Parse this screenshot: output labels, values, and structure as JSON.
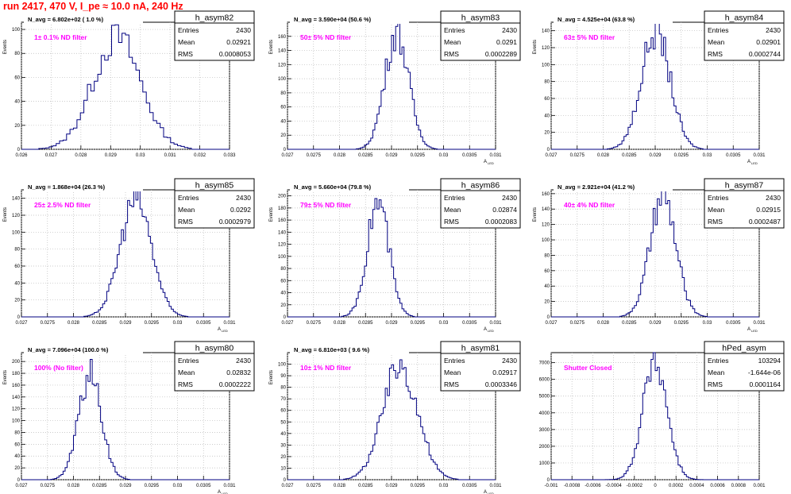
{
  "header": {
    "run_title": "run 2417,   470 V, I_pe ≈ 10.0 nA, 240 Hz"
  },
  "colors": {
    "histogram": "#000080",
    "annotation": "#ff00ff",
    "title": "#ff0000",
    "frame": "#000000",
    "grid": "#bbbbbb"
  },
  "chart_data": [
    {
      "type": "bar",
      "name": "h_asym82",
      "title": "N_avg = 6.802e+02 ( 1.0 %)",
      "annotation": "1± 0.1% ND filter",
      "ylabel": "Events",
      "xlabel": "",
      "stats": {
        "entries": "2430",
        "mean": "0.02921",
        "rms": "0.0008053"
      },
      "xlim": [
        0.026,
        0.033
      ],
      "ylim": [
        0,
        106
      ],
      "xticks": [
        "0.026",
        "0.027",
        "0.028",
        "0.029",
        "0.03",
        "0.031",
        "0.032",
        "0.033"
      ],
      "yticks": [
        0,
        20,
        40,
        60,
        80,
        100
      ],
      "mean": 0.02921,
      "rms": 0.0008053,
      "peak": 93,
      "bins": 60
    },
    {
      "type": "bar",
      "name": "h_asym83",
      "title": "N_avg = 3.590e+04 (50.6 %)",
      "annotation": "50± 5% ND filter",
      "ylabel": "Events",
      "xlabel": "A",
      "stats": {
        "entries": "2430",
        "mean": "0.0291",
        "rms": "0.0002289"
      },
      "xlim": [
        0.027,
        0.031
      ],
      "ylim": [
        0,
        180
      ],
      "xticks": [
        "0.027",
        "0.0275",
        "0.028",
        "0.0285",
        "0.029",
        "0.0295",
        "0.03",
        "0.0305",
        "0.031"
      ],
      "yticks": [
        0,
        20,
        40,
        60,
        80,
        100,
        120,
        140,
        160
      ],
      "mean": 0.0291,
      "rms": 0.0002289,
      "peak": 166,
      "bins": 100
    },
    {
      "type": "bar",
      "name": "h_asym84",
      "title": "N_avg = 4.525e+04 (63.8 %)",
      "annotation": "63± 5% ND filter",
      "ylabel": "Events",
      "xlabel": "A",
      "stats": {
        "entries": "2430",
        "mean": "0.02901",
        "rms": "0.0002744"
      },
      "xlim": [
        0.027,
        0.031
      ],
      "ylim": [
        0,
        150
      ],
      "xticks": [
        "0.027",
        "0.0275",
        "0.028",
        "0.0285",
        "0.029",
        "0.0295",
        "0.03",
        "0.0305",
        "0.031"
      ],
      "yticks": [
        0,
        20,
        40,
        60,
        80,
        100,
        120,
        140
      ],
      "mean": 0.02901,
      "rms": 0.0002744,
      "peak": 140,
      "bins": 100
    },
    {
      "type": "bar",
      "name": "h_asym85",
      "title": "N_avg = 1.868e+04 (26.3 %)",
      "annotation": "25± 2.5% ND filter",
      "ylabel": "Events",
      "xlabel": "A",
      "stats": {
        "entries": "2430",
        "mean": "0.0292",
        "rms": "0.0002979"
      },
      "xlim": [
        0.027,
        0.031
      ],
      "ylim": [
        0,
        150
      ],
      "xticks": [
        "0.027",
        "0.0275",
        "0.028",
        "0.0285",
        "0.029",
        "0.0295",
        "0.03",
        "0.0305",
        "0.031"
      ],
      "yticks": [
        0,
        20,
        40,
        60,
        80,
        100,
        120,
        140
      ],
      "mean": 0.0292,
      "rms": 0.0002979,
      "peak": 139,
      "bins": 100
    },
    {
      "type": "bar",
      "name": "h_asym86",
      "title": "N_avg = 5.660e+04 (79.8 %)",
      "annotation": "79± 5% ND filter",
      "ylabel": "Events",
      "xlabel": "A",
      "stats": {
        "entries": "2430",
        "mean": "0.02874",
        "rms": "0.0002083"
      },
      "xlim": [
        0.027,
        0.031
      ],
      "ylim": [
        0,
        210
      ],
      "xticks": [
        "0.027",
        "0.0275",
        "0.028",
        "0.0285",
        "0.029",
        "0.0295",
        "0.03",
        "0.0305",
        "0.031"
      ],
      "yticks": [
        0,
        20,
        40,
        60,
        80,
        100,
        120,
        140,
        160,
        180,
        200
      ],
      "mean": 0.02874,
      "rms": 0.0002083,
      "peak": 190,
      "bins": 100
    },
    {
      "type": "bar",
      "name": "h_asym87",
      "title": "N_avg = 2.921e+04 (41.2 %)",
      "annotation": "40± 4% ND filter",
      "ylabel": "Events",
      "xlabel": "A",
      "stats": {
        "entries": "2430",
        "mean": "0.02915",
        "rms": "0.0002487"
      },
      "xlim": [
        0.027,
        0.031
      ],
      "ylim": [
        0,
        165
      ],
      "xticks": [
        "0.027",
        "0.0275",
        "0.028",
        "0.0285",
        "0.029",
        "0.0295",
        "0.03",
        "0.0305",
        "0.031"
      ],
      "yticks": [
        0,
        20,
        40,
        60,
        80,
        100,
        120,
        140,
        160
      ],
      "mean": 0.02915,
      "rms": 0.0002487,
      "peak": 155,
      "bins": 100
    },
    {
      "type": "bar",
      "name": "h_asym80",
      "title": "N_avg = 7.096e+04 (100.0 %)",
      "annotation": "100% (No filter)",
      "ylabel": "Events",
      "xlabel": "A",
      "stats": {
        "entries": "2430",
        "mean": "0.02832",
        "rms": "0.0002222"
      },
      "xlim": [
        0.027,
        0.031
      ],
      "ylim": [
        0,
        215
      ],
      "xticks": [
        "0.027",
        "0.0275",
        "0.028",
        "0.0285",
        "0.029",
        "0.0295",
        "0.03",
        "0.0305",
        "0.031"
      ],
      "yticks": [
        0,
        20,
        40,
        60,
        80,
        100,
        120,
        140,
        160,
        180,
        200
      ],
      "mean": 0.02832,
      "rms": 0.0002222,
      "peak": 178,
      "bins": 100
    },
    {
      "type": "bar",
      "name": "h_asym81",
      "title": "N_avg = 6.810e+03 ( 9.6 %)",
      "annotation": "10± 1% ND filter",
      "ylabel": "Events",
      "xlabel": "A",
      "stats": {
        "entries": "2430",
        "mean": "0.02917",
        "rms": "0.0003346"
      },
      "xlim": [
        0.027,
        0.031
      ],
      "ylim": [
        0,
        110
      ],
      "xticks": [
        "0.027",
        "0.0275",
        "0.028",
        "0.0285",
        "0.029",
        "0.0295",
        "0.03",
        "0.0305",
        "0.031"
      ],
      "yticks": [
        0,
        10,
        20,
        30,
        40,
        50,
        60,
        70,
        80,
        90,
        100
      ],
      "mean": 0.02917,
      "rms": 0.0003346,
      "peak": 99,
      "bins": 100
    },
    {
      "type": "bar",
      "name": "hPed_asym",
      "title": "",
      "annotation": "Shutter Closed",
      "ylabel": "",
      "xlabel": "",
      "stats": {
        "entries": "103294",
        "mean": "-1.644e-06",
        "rms": "0.0001164"
      },
      "xlim": [
        -0.001,
        0.001
      ],
      "ylim": [
        0,
        7600
      ],
      "xticks": [
        "-0.001",
        "-0.0008",
        "-0.0006",
        "-0.0004",
        "-0.0002",
        "0",
        "0.0002",
        "0.0004",
        "0.0006",
        "0.0008",
        "0.001"
      ],
      "yticks": [
        0,
        1000,
        2000,
        3000,
        4000,
        5000,
        6000,
        7000
      ],
      "mean": -1.644e-06,
      "rms": 0.0001164,
      "peak": 7100,
      "bins": 100
    }
  ],
  "stats_labels": {
    "entries": "Entries",
    "mean": "Mean",
    "rms": "RMS"
  },
  "xlabel_sub": "LED"
}
